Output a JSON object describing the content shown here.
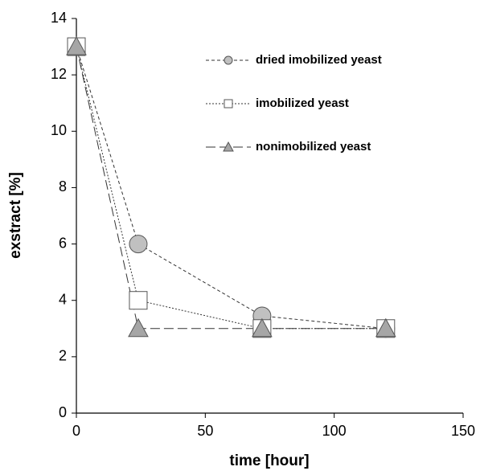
{
  "chart_data": {
    "type": "line",
    "xlabel": "time [hour]",
    "ylabel": "exstract [%]",
    "x": [
      0,
      24,
      72,
      120
    ],
    "series": [
      {
        "name": "dried imobilized yeast",
        "color": "#c0c0c0",
        "marker": "circle",
        "line_style": "dashed",
        "values": [
          13,
          6,
          3.45,
          3
        ]
      },
      {
        "name": "imobilized yeast",
        "color": "#ffffff",
        "marker": "square",
        "line_style": "dotted",
        "values": [
          13,
          4,
          3,
          3
        ]
      },
      {
        "name": "nonimobilized yeast",
        "color": "#a6a6a6",
        "marker": "triangle",
        "line_style": "longdash",
        "values": [
          13,
          3,
          3,
          3
        ]
      }
    ],
    "xlim": [
      0,
      150
    ],
    "xticks": [
      0,
      50,
      100,
      150
    ],
    "ylim": [
      0,
      14
    ],
    "yticks": [
      0,
      2,
      4,
      6,
      8,
      10,
      12,
      14
    ],
    "legend": "upper right"
  }
}
